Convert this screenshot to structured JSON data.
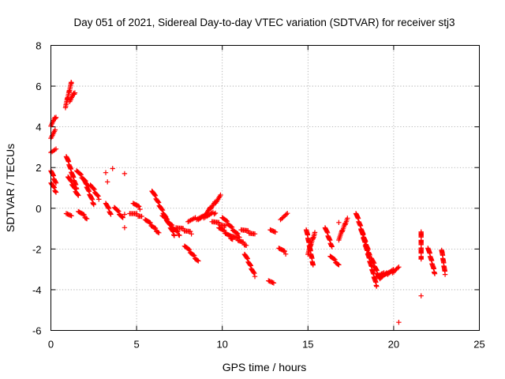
{
  "chart_data": {
    "type": "scatter",
    "title": "Day 051 of 2021, Sidereal Day-to-day VTEC variation (SDTVAR) for receiver stj3",
    "xlabel": "GPS time / hours",
    "ylabel": "SDTVAR / TECUs",
    "xlim": [
      0,
      25
    ],
    "ylim": [
      -6,
      8
    ],
    "xticks": [
      0,
      5,
      10,
      15,
      20,
      25
    ],
    "yticks": [
      -6,
      -4,
      -2,
      0,
      2,
      4,
      6,
      8
    ],
    "grid": true,
    "marker": "+",
    "color": "#ff0000",
    "segments": [
      {
        "x": [
          0.0,
          0.3
        ],
        "y": [
          4.1,
          4.5
        ]
      },
      {
        "x": [
          0.0,
          0.25
        ],
        "y": [
          3.5,
          3.8
        ]
      },
      {
        "x": [
          0.0,
          0.3
        ],
        "y": [
          2.8,
          2.9
        ]
      },
      {
        "x": [
          0.0,
          0.3
        ],
        "y": [
          1.9,
          1.2
        ]
      },
      {
        "x": [
          0.0,
          0.3
        ],
        "y": [
          1.3,
          0.8
        ]
      },
      {
        "x": [
          0.85,
          1.2
        ],
        "y": [
          5.0,
          6.2
        ]
      },
      {
        "x": [
          1.1,
          1.4
        ],
        "y": [
          5.3,
          5.7
        ]
      },
      {
        "x": [
          0.9,
          1.5
        ],
        "y": [
          2.6,
          1.0
        ]
      },
      {
        "x": [
          1.0,
          1.6
        ],
        "y": [
          1.6,
          0.6
        ]
      },
      {
        "x": [
          1.5,
          2.2
        ],
        "y": [
          1.9,
          1.1
        ]
      },
      {
        "x": [
          1.9,
          2.5
        ],
        "y": [
          1.5,
          0.2
        ]
      },
      {
        "x": [
          2.3,
          2.8
        ],
        "y": [
          1.2,
          0.5
        ]
      },
      {
        "x": [
          0.9,
          1.2
        ],
        "y": [
          -0.2,
          -0.4
        ]
      },
      {
        "x": [
          1.6,
          2.1
        ],
        "y": [
          -0.1,
          -0.5
        ]
      },
      {
        "x": [
          3.2,
          3.5
        ],
        "y": [
          0.3,
          -0.3
        ]
      },
      {
        "x": [
          3.7,
          4.2
        ],
        "y": [
          0.1,
          -0.5
        ]
      },
      {
        "x": [
          4.6,
          5.3
        ],
        "y": [
          -0.2,
          -0.4
        ]
      },
      {
        "x": [
          4.8,
          5.2
        ],
        "y": [
          0.3,
          0.0
        ]
      },
      {
        "x": [
          5.5,
          6.3
        ],
        "y": [
          -0.5,
          -1.2
        ]
      },
      {
        "x": [
          5.9,
          7.2
        ],
        "y": [
          0.9,
          -1.3
        ]
      },
      {
        "x": [
          6.5,
          7.5
        ],
        "y": [
          -0.3,
          -1.3
        ]
      },
      {
        "x": [
          7.3,
          8.2
        ],
        "y": [
          -0.9,
          -1.2
        ]
      },
      {
        "x": [
          7.8,
          8.6
        ],
        "y": [
          -1.8,
          -2.6
        ]
      },
      {
        "x": [
          8.0,
          9.0
        ],
        "y": [
          -0.6,
          -0.4
        ]
      },
      {
        "x": [
          8.6,
          9.6
        ],
        "y": [
          -0.5,
          -0.2
        ]
      },
      {
        "x": [
          9.0,
          9.9
        ],
        "y": [
          -0.3,
          0.6
        ]
      },
      {
        "x": [
          9.4,
          10.2
        ],
        "y": [
          -0.6,
          -0.9
        ]
      },
      {
        "x": [
          9.8,
          10.6
        ],
        "y": [
          -0.9,
          -1.5
        ]
      },
      {
        "x": [
          10.0,
          11.0
        ],
        "y": [
          -0.4,
          -1.4
        ]
      },
      {
        "x": [
          10.5,
          11.4
        ],
        "y": [
          -1.3,
          -1.8
        ]
      },
      {
        "x": [
          11.1,
          11.9
        ],
        "y": [
          -1.0,
          -1.3
        ]
      },
      {
        "x": [
          11.3,
          11.9
        ],
        "y": [
          -2.2,
          -3.3
        ]
      },
      {
        "x": [
          12.7,
          13.0
        ],
        "y": [
          -3.5,
          -3.7
        ]
      },
      {
        "x": [
          12.8,
          13.1
        ],
        "y": [
          -1.0,
          -1.2
        ]
      },
      {
        "x": [
          13.3,
          13.7
        ],
        "y": [
          -1.9,
          -2.2
        ]
      },
      {
        "x": [
          13.4,
          13.8
        ],
        "y": [
          -0.5,
          -0.3
        ]
      },
      {
        "x": [
          14.9,
          15.3
        ],
        "y": [
          -1.0,
          -2.8
        ]
      },
      {
        "x": [
          15.0,
          15.4
        ],
        "y": [
          -2.2,
          -1.2
        ]
      },
      {
        "x": [
          16.0,
          16.4
        ],
        "y": [
          -0.9,
          -1.9
        ]
      },
      {
        "x": [
          16.3,
          16.8
        ],
        "y": [
          -2.3,
          -2.8
        ]
      },
      {
        "x": [
          16.8,
          17.3
        ],
        "y": [
          -1.5,
          -0.5
        ]
      },
      {
        "x": [
          17.8,
          18.6
        ],
        "y": [
          -0.2,
          -2.3
        ]
      },
      {
        "x": [
          18.1,
          19.0
        ],
        "y": [
          -1.0,
          -3.8
        ]
      },
      {
        "x": [
          18.7,
          19.2
        ],
        "y": [
          -2.4,
          -3.5
        ]
      },
      {
        "x": [
          19.0,
          20.0
        ],
        "y": [
          -3.3,
          -3.1
        ]
      },
      {
        "x": [
          19.2,
          20.3
        ],
        "y": [
          -3.4,
          -2.9
        ]
      },
      {
        "x": [
          21.6,
          21.6
        ],
        "y": [
          -1.1,
          -2.5
        ]
      },
      {
        "x": [
          22.0,
          22.4
        ],
        "y": [
          -1.9,
          -3.2
        ]
      },
      {
        "x": [
          22.8,
          23.0
        ],
        "y": [
          -2.0,
          -3.2
        ]
      }
    ],
    "points": [
      {
        "x": 4.3,
        "y": 1.7
      },
      {
        "x": 3.6,
        "y": 1.95
      },
      {
        "x": 4.3,
        "y": -0.3
      },
      {
        "x": 4.3,
        "y": -0.95
      },
      {
        "x": 3.3,
        "y": 1.3
      },
      {
        "x": 3.2,
        "y": 1.75
      },
      {
        "x": 20.3,
        "y": -5.6
      },
      {
        "x": 21.6,
        "y": -4.3
      },
      {
        "x": 16.8,
        "y": -0.7
      }
    ]
  }
}
